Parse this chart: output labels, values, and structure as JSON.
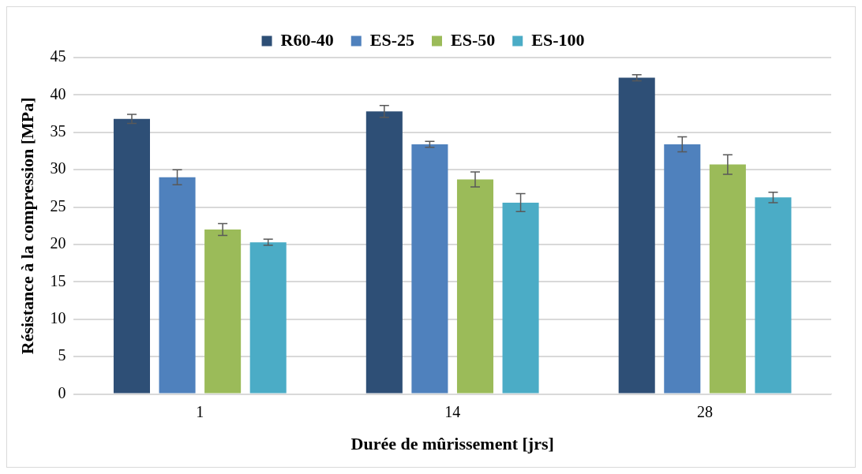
{
  "chart_data": {
    "type": "bar",
    "xlabel": "Durée de mûrissement [jrs]",
    "ylabel": "Résistance à la compression [MPa]",
    "categories": [
      "1",
      "14",
      "28"
    ],
    "series": [
      {
        "name": "R60-40",
        "color": "#2e4f76",
        "values": [
          36.8,
          37.8,
          42.3
        ],
        "errors": [
          0.6,
          0.8,
          0.4
        ]
      },
      {
        "name": "ES-25",
        "color": "#4f81bd",
        "values": [
          29.0,
          33.4,
          33.4
        ],
        "errors": [
          1.0,
          0.4,
          1.0
        ]
      },
      {
        "name": "ES-50",
        "color": "#9bbb59",
        "values": [
          22.0,
          28.7,
          30.7
        ],
        "errors": [
          0.8,
          1.0,
          1.3
        ]
      },
      {
        "name": "ES-100",
        "color": "#4bacc6",
        "values": [
          20.3,
          25.6,
          26.3
        ],
        "errors": [
          0.4,
          1.2,
          0.7
        ]
      }
    ],
    "ylim": [
      0,
      45
    ],
    "yticks": [
      0,
      5,
      10,
      15,
      20,
      25,
      30,
      35,
      40,
      45
    ],
    "grid": "y",
    "legend": "top"
  }
}
